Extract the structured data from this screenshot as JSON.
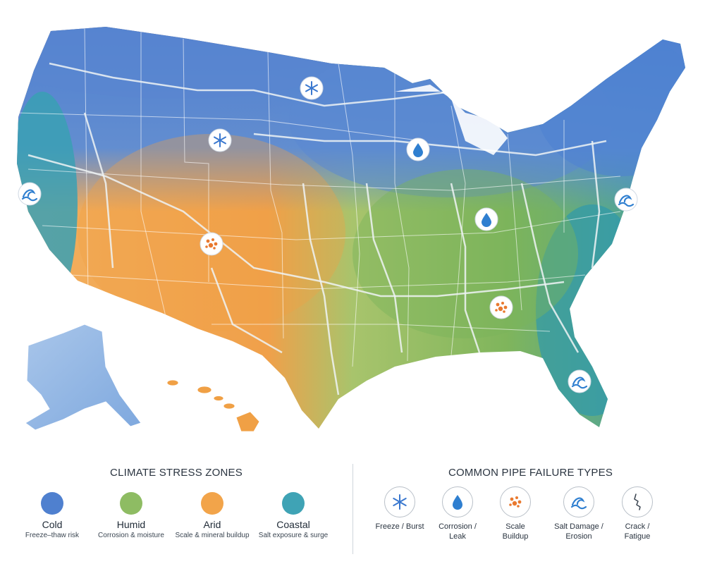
{
  "legend": {
    "zones_title": "CLIMATE STRESS ZONES",
    "types_title": "COMMON PIPE FAILURE TYPES",
    "zones": [
      {
        "name": "Cold",
        "desc": "Freeze–thaw risk",
        "color": "#4f80cf"
      },
      {
        "name": "Humid",
        "desc": "Corrosion & moisture",
        "color": "#8ebc63"
      },
      {
        "name": "Arid",
        "desc": "Scale & mineral buildup",
        "color": "#f2a44a"
      },
      {
        "name": "Coastal",
        "desc": "Salt exposure & surge",
        "color": "#3fa3b5"
      }
    ],
    "failure_types": [
      {
        "line1": "Freeze / Burst",
        "line2": "",
        "icon": "snowflake-icon"
      },
      {
        "line1": "Corrosion /",
        "line2": "Leak",
        "icon": "water-drop-icon"
      },
      {
        "line1": "Scale",
        "line2": "Buildup",
        "icon": "scale-buildup-icon"
      },
      {
        "line1": "Salt Damage /",
        "line2": "Erosion",
        "icon": "wave-icon"
      },
      {
        "line1": "Crack /",
        "line2": "Fatigue",
        "icon": "crack-icon"
      }
    ]
  },
  "map_markers": [
    {
      "type": "snowflake-icon"
    },
    {
      "type": "snowflake-icon"
    },
    {
      "type": "water-drop-icon"
    },
    {
      "type": "water-drop-icon"
    },
    {
      "type": "wave-icon"
    },
    {
      "type": "wave-icon"
    },
    {
      "type": "wave-icon"
    },
    {
      "type": "scale-buildup-icon"
    },
    {
      "type": "scale-buildup-icon"
    }
  ]
}
